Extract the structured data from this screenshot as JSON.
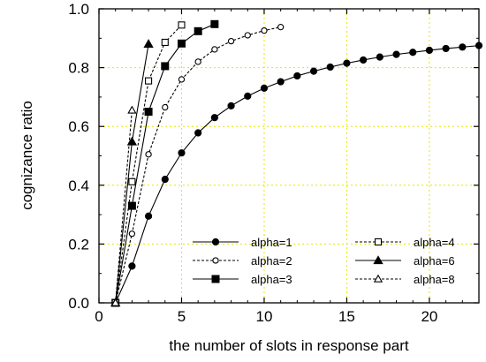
{
  "chart_data": {
    "type": "line",
    "xlabel": "the number of slots in response part",
    "ylabel": "cognizance ratio",
    "xlim": [
      0,
      23
    ],
    "ylim": [
      0.0,
      1.0
    ],
    "xticks": [
      0,
      5,
      10,
      15,
      20
    ],
    "yticks": [
      0.0,
      0.2,
      0.4,
      0.6,
      0.8,
      1.0
    ],
    "xtick_labels": [
      "0",
      "5",
      "10",
      "15",
      "20"
    ],
    "ytick_labels": [
      "0.0",
      "0.2",
      "0.4",
      "0.6",
      "0.8",
      "1.0"
    ],
    "grid": true,
    "grid_style": "dotted",
    "grid_color": "#e6e600",
    "legend_placement": "bottom-right",
    "series": [
      {
        "name": "alpha=1",
        "marker": "circle-filled",
        "line": "solid",
        "x": [
          1,
          2,
          3,
          4,
          5,
          6,
          7,
          8,
          9,
          10,
          11,
          12,
          13,
          14,
          15,
          16,
          17,
          18,
          19,
          20,
          21,
          22,
          23
        ],
        "y": [
          0.0,
          0.125,
          0.295,
          0.42,
          0.51,
          0.578,
          0.63,
          0.67,
          0.703,
          0.73,
          0.752,
          0.772,
          0.788,
          0.802,
          0.815,
          0.826,
          0.836,
          0.845,
          0.852,
          0.859,
          0.865,
          0.87,
          0.875
        ]
      },
      {
        "name": "alpha=2",
        "marker": "circle-open",
        "line": "dashed",
        "x": [
          1,
          2,
          3,
          4,
          5,
          6,
          7,
          8,
          9,
          10,
          11
        ],
        "y": [
          0.0,
          0.235,
          0.505,
          0.665,
          0.76,
          0.82,
          0.862,
          0.89,
          0.91,
          0.926,
          0.938
        ]
      },
      {
        "name": "alpha=3",
        "marker": "square-filled",
        "line": "solid",
        "x": [
          1,
          2,
          3,
          4,
          5,
          6,
          7
        ],
        "y": [
          0.0,
          0.33,
          0.65,
          0.805,
          0.882,
          0.924,
          0.948
        ]
      },
      {
        "name": "alpha=4",
        "marker": "square-open",
        "line": "dashed",
        "x": [
          1,
          2,
          3,
          4,
          5
        ],
        "y": [
          0.0,
          0.412,
          0.755,
          0.886,
          0.945
        ]
      },
      {
        "name": "alpha=6",
        "marker": "triangle-filled",
        "line": "solid",
        "x": [
          1,
          2,
          3
        ],
        "y": [
          0.0,
          0.548,
          0.88
        ]
      },
      {
        "name": "alpha=8",
        "marker": "triangle-open",
        "line": "dashed",
        "x": [
          1,
          2
        ],
        "y": [
          0.0,
          0.655
        ]
      }
    ]
  }
}
